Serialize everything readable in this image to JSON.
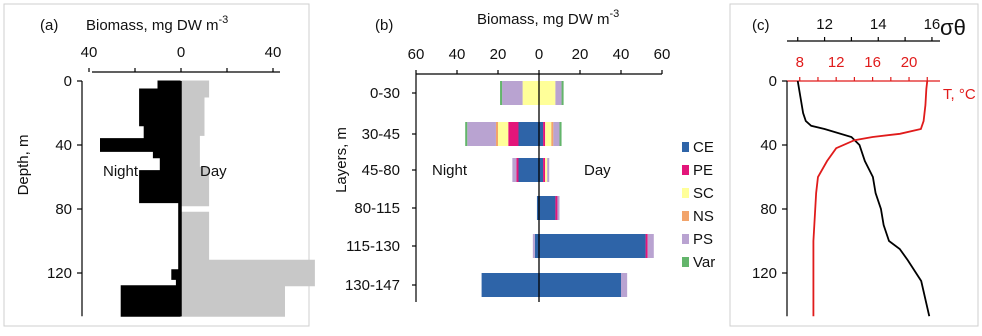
{
  "chart_data": [
    {
      "panel": "(a)",
      "type": "bar",
      "orientation": "horizontal-step",
      "title": "Biomass, mg DW m",
      "title_sup": "-3",
      "xlabel": "Biomass, mg DW m-3",
      "ylabel": "Depth, m",
      "xlim": [
        -50,
        60
      ],
      "x_ticks": [
        40,
        0,
        40
      ],
      "x_tick_values": [
        -40,
        0,
        40
      ],
      "ylim": [
        0,
        147
      ],
      "y_ticks": [
        "0",
        "40",
        "80",
        "120"
      ],
      "y_tick_values": [
        0,
        40,
        80,
        120
      ],
      "grid": false,
      "annotations": [
        "Night",
        "Day"
      ],
      "series": [
        {
          "name": "Night",
          "color": "#000000",
          "depth_top": [
            0,
            5,
            14,
            28,
            36,
            44,
            48,
            56,
            66,
            76,
            112,
            118,
            124,
            128,
            147
          ],
          "depth_bottom": [
            5,
            14,
            28,
            36,
            44,
            48,
            56,
            66,
            76,
            112,
            118,
            124,
            128,
            147,
            147
          ],
          "values": [
            -10,
            -18,
            -18,
            -16,
            -35,
            -12,
            -9,
            -18,
            -18,
            -1,
            -1,
            -4,
            -2,
            -26
          ]
        },
        {
          "name": "Day",
          "color": "#c8c8c8",
          "depth_top": [
            0,
            10,
            34,
            54,
            66,
            78,
            82,
            90,
            98,
            104,
            112,
            128,
            147
          ],
          "depth_bottom": [
            10,
            34,
            54,
            66,
            78,
            82,
            90,
            98,
            104,
            112,
            128,
            147,
            147
          ],
          "values": [
            12,
            10,
            8,
            12,
            12,
            0,
            12,
            12,
            12,
            12,
            58,
            45
          ]
        }
      ]
    },
    {
      "panel": "(b)",
      "type": "bar",
      "orientation": "horizontal-stacked",
      "title": "Biomass, mg DW m",
      "title_sup": "-3",
      "ylabel": "Layers, m",
      "xlim": [
        -60,
        60
      ],
      "x_ticks": [
        "60",
        "40",
        "20",
        "0",
        "20",
        "40",
        "60"
      ],
      "x_tick_values": [
        -60,
        -40,
        -20,
        0,
        20,
        40,
        60
      ],
      "categories": [
        "0-30",
        "30-45",
        "45-80",
        "80-115",
        "115-130",
        "130-147"
      ],
      "annotations": [
        "Night",
        "Day"
      ],
      "legend_position": "right",
      "series": [
        {
          "name": "CE",
          "color": "#2e64a8",
          "night": [
            0,
            10,
            10,
            1,
            2,
            28
          ],
          "day": [
            0,
            2,
            2,
            8,
            52,
            40
          ]
        },
        {
          "name": "PE",
          "color": "#e3157a",
          "night": [
            0,
            5,
            1,
            0,
            0,
            0
          ],
          "day": [
            0,
            1,
            1,
            1,
            1,
            0
          ]
        },
        {
          "name": "SC",
          "color": "#ffff99",
          "night": [
            8,
            5,
            0,
            0,
            0,
            0
          ],
          "day": [
            8,
            3,
            1,
            0,
            0,
            0
          ]
        },
        {
          "name": "NS",
          "color": "#f2a46b",
          "night": [
            0,
            1,
            0,
            0,
            0,
            0
          ],
          "day": [
            0,
            1,
            0,
            0,
            0,
            0
          ]
        },
        {
          "name": "PS",
          "color": "#b9a3d1",
          "night": [
            10,
            14,
            2,
            0,
            1,
            0
          ],
          "day": [
            3,
            3,
            1,
            1,
            3,
            3
          ]
        },
        {
          "name": "Var",
          "color": "#63b56b",
          "night": [
            1,
            1,
            0,
            0,
            0,
            0
          ],
          "day": [
            1,
            1,
            0,
            0,
            0,
            0
          ]
        }
      ]
    },
    {
      "panel": "(c)",
      "type": "line",
      "xlabel_top": "σθ",
      "xlabel_bottom": "T, °C",
      "ylim": [
        0,
        147
      ],
      "y_ticks": [
        "0",
        "40",
        "80",
        "120"
      ],
      "y_tick_values": [
        0,
        40,
        80,
        120
      ],
      "sigma_xlim": [
        10.6,
        16.3
      ],
      "sigma_ticks": [
        "12",
        "14",
        "16"
      ],
      "sigma_tick_values": [
        12,
        14,
        16
      ],
      "temp_xlim": [
        6.6,
        23.4
      ],
      "temp_ticks": [
        "8",
        "12",
        "16",
        "20"
      ],
      "temp_tick_values": [
        8,
        12,
        16,
        20
      ],
      "series": [
        {
          "name": "σθ",
          "color": "#000000",
          "x": [
            11.0,
            11.1,
            11.2,
            11.3,
            11.5,
            12.0,
            13.0,
            13.3,
            13.5,
            13.8,
            13.9,
            14.1,
            14.2,
            14.4,
            14.8,
            15.1,
            15.6,
            15.9
          ],
          "y": [
            0,
            10,
            20,
            25,
            28,
            30,
            35,
            40,
            50,
            60,
            70,
            80,
            90,
            100,
            105,
            112,
            125,
            147
          ]
        },
        {
          "name": "T, °C",
          "color": "#e01b1b",
          "x": [
            22.0,
            21.9,
            21.8,
            21.6,
            21.3,
            19.0,
            16.0,
            14.0,
            12.0,
            11.0,
            10.0,
            9.8,
            9.7,
            9.6,
            9.5,
            9.5,
            9.5,
            9.5
          ],
          "y": [
            0,
            5,
            15,
            25,
            30,
            33,
            35,
            37,
            42,
            50,
            60,
            70,
            80,
            90,
            100,
            110,
            125,
            147
          ]
        }
      ]
    }
  ]
}
